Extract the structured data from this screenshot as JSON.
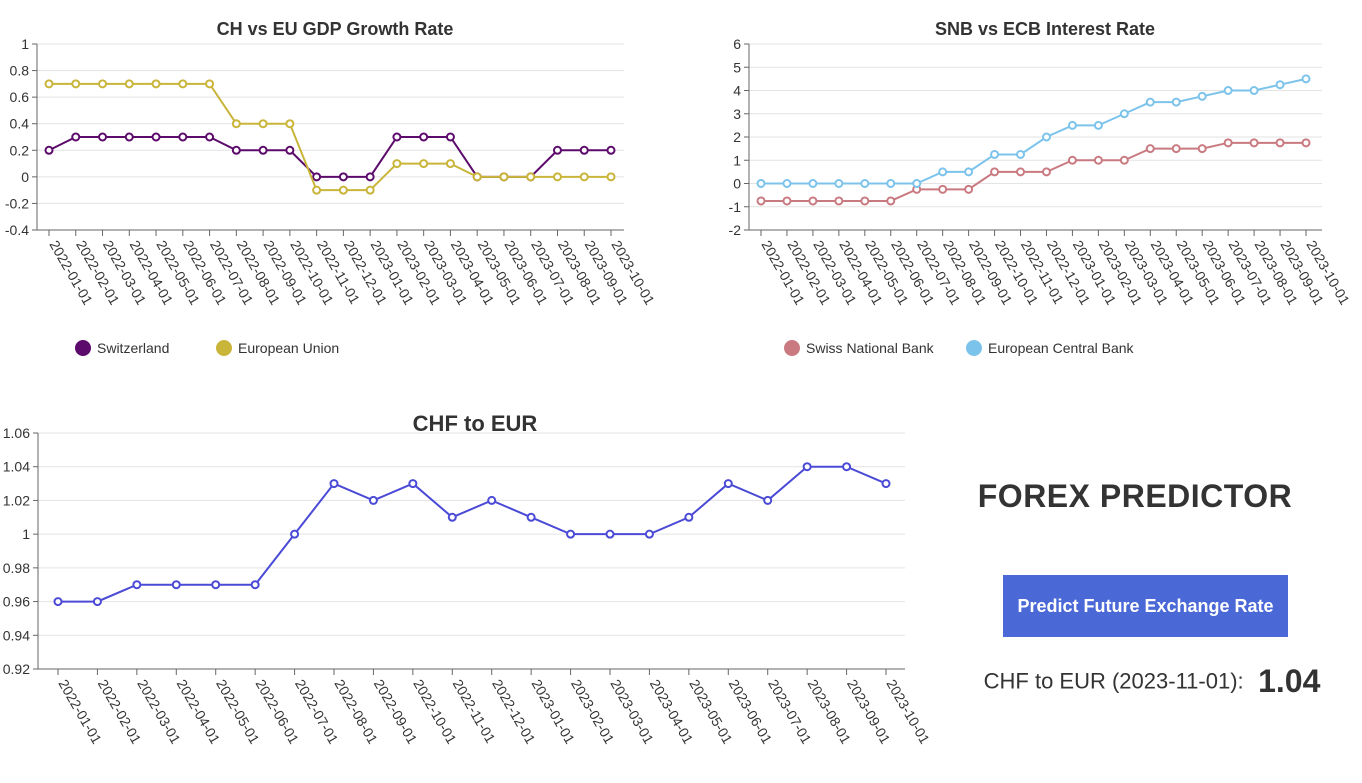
{
  "chart_data": [
    {
      "id": "gdp",
      "type": "line",
      "title": "CH vs EU GDP Growth Rate",
      "x": [
        "2022-01-01",
        "2022-02-01",
        "2022-03-01",
        "2022-04-01",
        "2022-05-01",
        "2022-06-01",
        "2022-07-01",
        "2022-08-01",
        "2022-09-01",
        "2022-10-01",
        "2022-11-01",
        "2022-12-01",
        "2023-01-01",
        "2023-02-01",
        "2023-03-01",
        "2023-04-01",
        "2023-05-01",
        "2023-06-01",
        "2023-07-01",
        "2023-08-01",
        "2023-09-01",
        "2023-10-01"
      ],
      "series": [
        {
          "name": "Switzerland",
          "color": "#5c0a6b",
          "values": [
            0.2,
            0.3,
            0.3,
            0.3,
            0.3,
            0.3,
            0.3,
            0.2,
            0.2,
            0.2,
            0,
            0,
            0,
            0.3,
            0.3,
            0.3,
            0,
            0,
            0,
            0.2,
            0.2,
            0.2
          ]
        },
        {
          "name": "European Union",
          "color": "#c9b53a",
          "values": [
            0.7,
            0.7,
            0.7,
            0.7,
            0.7,
            0.7,
            0.7,
            0.4,
            0.4,
            0.4,
            -0.1,
            -0.1,
            -0.1,
            0.1,
            0.1,
            0.1,
            0,
            0,
            0,
            0,
            0,
            0
          ]
        }
      ],
      "ylim": [
        -0.4,
        1
      ],
      "yticks": [
        "1",
        "0.8",
        "0.6",
        "0.4",
        "0.2",
        "0",
        "-0.2",
        "-0.4"
      ],
      "grid": true,
      "legend": "bottom-left"
    },
    {
      "id": "rate",
      "type": "line",
      "title": "SNB vs ECB Interest Rate",
      "x": [
        "2022-01-01",
        "2022-02-01",
        "2022-03-01",
        "2022-04-01",
        "2022-05-01",
        "2022-06-01",
        "2022-07-01",
        "2022-08-01",
        "2022-09-01",
        "2022-10-01",
        "2022-11-01",
        "2022-12-01",
        "2023-01-01",
        "2023-02-01",
        "2023-03-01",
        "2023-04-01",
        "2023-05-01",
        "2023-06-01",
        "2023-07-01",
        "2023-08-01",
        "2023-09-01",
        "2023-10-01"
      ],
      "series": [
        {
          "name": "Swiss National Bank",
          "color": "#c97a80",
          "values": [
            -0.75,
            -0.75,
            -0.75,
            -0.75,
            -0.75,
            -0.75,
            -0.25,
            -0.25,
            -0.25,
            0.5,
            0.5,
            0.5,
            1,
            1,
            1,
            1.5,
            1.5,
            1.5,
            1.75,
            1.75,
            1.75,
            1.75
          ]
        },
        {
          "name": "European Central Bank",
          "color": "#7cc3ec",
          "values": [
            0,
            0,
            0,
            0,
            0,
            0,
            0,
            0.5,
            0.5,
            1.25,
            1.25,
            2,
            2.5,
            2.5,
            3,
            3.5,
            3.5,
            3.75,
            4,
            4,
            4.25,
            4.5
          ]
        }
      ],
      "ylim": [
        -2,
        6
      ],
      "yticks": [
        "6",
        "5",
        "4",
        "3",
        "2",
        "1",
        "0",
        "-1",
        "-2"
      ],
      "grid": true,
      "legend": "bottom-left"
    },
    {
      "id": "fx",
      "type": "line",
      "title": "CHF to EUR",
      "x": [
        "2022-01-01",
        "2022-02-01",
        "2022-03-01",
        "2022-04-01",
        "2022-05-01",
        "2022-06-01",
        "2022-07-01",
        "2022-08-01",
        "2022-09-01",
        "2022-10-01",
        "2022-11-01",
        "2022-12-01",
        "2023-01-01",
        "2023-02-01",
        "2023-03-01",
        "2023-04-01",
        "2023-05-01",
        "2023-06-01",
        "2023-07-01",
        "2023-08-01",
        "2023-09-01",
        "2023-10-01"
      ],
      "series": [
        {
          "color": "#4a4ad6",
          "values": [
            0.96,
            0.96,
            0.97,
            0.97,
            0.97,
            0.97,
            1,
            1.03,
            1.02,
            1.03,
            1.01,
            1.02,
            1.01,
            1,
            1,
            1,
            1.01,
            1.03,
            1.02,
            1.04,
            1.04,
            1.03
          ]
        }
      ],
      "ylim": [
        0.92,
        1.06
      ],
      "yticks": [
        "1.06",
        "1.04",
        "1.02",
        "1",
        "0.98",
        "0.96",
        "0.94",
        "0.92"
      ],
      "grid": true
    }
  ],
  "panel": {
    "title": "FOREX PREDICTOR",
    "button_label": "Predict Future Exchange Rate",
    "result_label": "CHF to EUR (2023-11-01):",
    "result_value": "1.04"
  }
}
